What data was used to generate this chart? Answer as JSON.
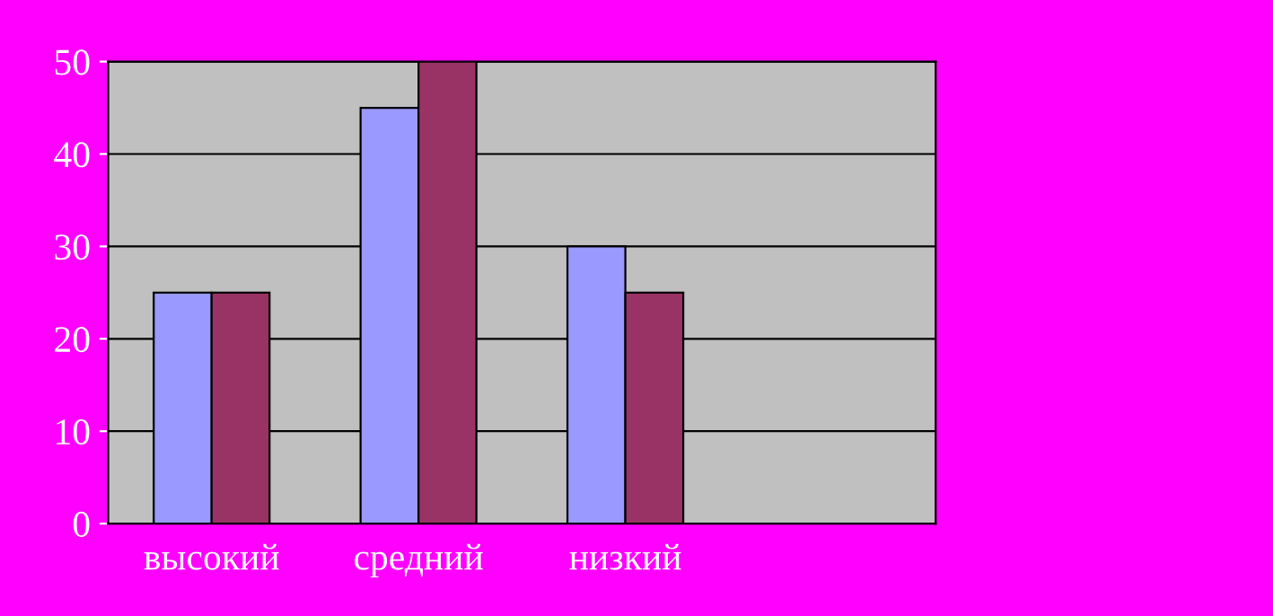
{
  "chart_data": {
    "type": "bar",
    "categories": [
      "высокий",
      "средний",
      "низкий",
      null
    ],
    "series": [
      {
        "color": "#9999ff",
        "values": [
          25,
          45,
          30,
          null
        ]
      },
      {
        "color": "#993366",
        "values": [
          25,
          50,
          25,
          null
        ]
      }
    ],
    "ylim": [
      0,
      50
    ],
    "yticks": [
      0,
      10,
      20,
      30,
      40,
      50
    ],
    "grid": "y",
    "legend": false
  }
}
